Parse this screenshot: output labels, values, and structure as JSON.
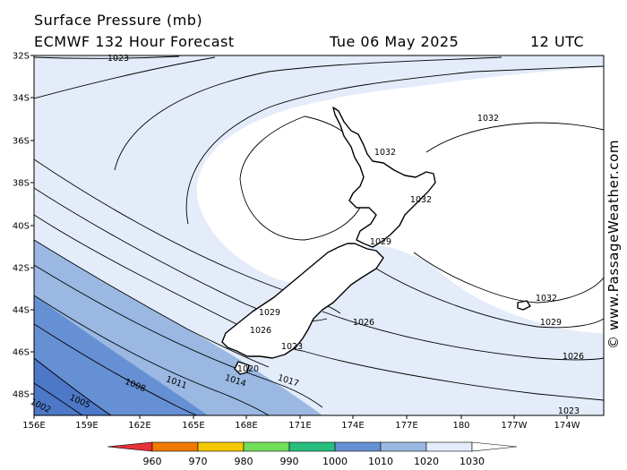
{
  "header": {
    "title": "Surface Pressure (mb)",
    "model": "ECMWF 132 Hour Forecast",
    "date": "Tue 06 May 2025",
    "utc": "12 UTC"
  },
  "credit": "© www.PassageWeather.com",
  "axes": {
    "lat_labels": [
      "32S",
      "34S",
      "36S",
      "38S",
      "40S",
      "42S",
      "44S",
      "46S",
      "48S"
    ],
    "lon_labels": [
      "156E",
      "159E",
      "162E",
      "165E",
      "168E",
      "171E",
      "174E",
      "177E",
      "180",
      "177W",
      "174W"
    ]
  },
  "isobar_labels": [
    "1023",
    "1032",
    "1032",
    "1032",
    "1029",
    "1029",
    "1026",
    "1026",
    "1023",
    "1020",
    "1032",
    "1029",
    "1026",
    "1023",
    "1017",
    "1014",
    "1011",
    "1008",
    "1005",
    "1002"
  ],
  "legend": {
    "values": [
      "960",
      "970",
      "980",
      "990",
      "1000",
      "1010",
      "1020",
      "1030"
    ],
    "colors": [
      "#e8323a",
      "#f07a00",
      "#f5c800",
      "#72e05a",
      "#27be7e",
      "#6690d4",
      "#9ab8e2",
      "#e3ecf8"
    ]
  },
  "colors": {
    "fill_1030": "#e3ecf8",
    "fill_1020": "#9ab8e2",
    "fill_1010": "#6690d4"
  }
}
